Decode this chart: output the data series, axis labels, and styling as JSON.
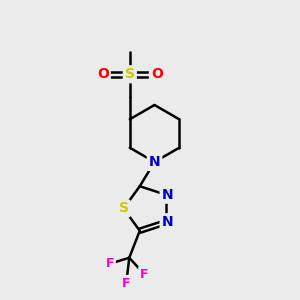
{
  "bg_color": "#ebebeb",
  "bond_color": "#000000",
  "bond_width": 1.8,
  "atom_colors": {
    "S_sulfonyl": "#cccc00",
    "O": "#ff0000",
    "N": "#0000cc",
    "S_thiadiazole": "#cccc00",
    "F": "#ff00cc",
    "C": "#000000"
  },
  "font_size_main": 10,
  "font_size_small": 9,
  "xlim": [
    0,
    10
  ],
  "ylim": [
    0,
    10
  ]
}
